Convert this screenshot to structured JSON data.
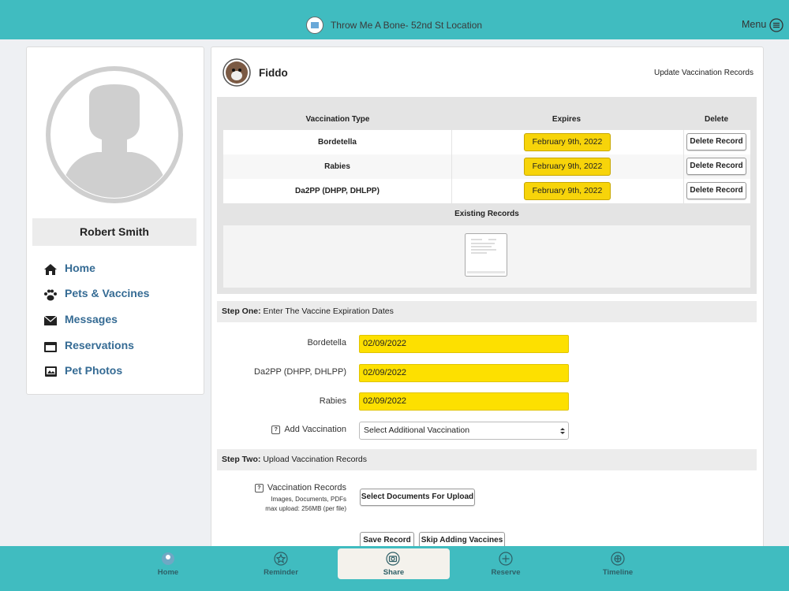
{
  "header": {
    "title": "Throw Me A Bone- 52nd St Location",
    "menu": "Menu"
  },
  "sidebar": {
    "name": "Robert Smith",
    "nav": [
      "Home",
      "Pets & Vaccines",
      "Messages",
      "Reservations",
      "Pet Photos"
    ]
  },
  "pet": {
    "name": "Fiddo",
    "action": "Update Vaccination Records"
  },
  "table": {
    "headers": [
      "Vaccination Type",
      "Expires",
      "Delete"
    ],
    "rows": [
      [
        "Bordetella",
        "February 9th, 2022",
        "Delete Record"
      ],
      [
        "Rabies",
        "February 9th, 2022",
        "Delete Record"
      ],
      [
        "Da2PP (DHPP, DHLPP)",
        "February 9th, 2022",
        "Delete Record"
      ]
    ]
  },
  "existing_records": "Existing Records",
  "step_one": {
    "label": "Step One:",
    "text": "Enter The Vaccine Expiration Dates",
    "fields": [
      {
        "label": "Bordetella",
        "value": "02/09/2022"
      },
      {
        "label": "Da2PP (DHPP, DHLPP)",
        "value": "02/09/2022"
      },
      {
        "label": "Rabies",
        "value": "02/09/2022"
      }
    ],
    "help_icon": "?",
    "add_label": "Add Vaccination",
    "select": "Select Additional Vaccination"
  },
  "step_two": {
    "label": "Step Two:",
    "text": "Upload Vaccination Records",
    "help_icon": "?",
    "field_label": "Vaccination Records",
    "hint_types": "Images, Documents, PDFs",
    "hint_size": "max upload: 256MB (per file)",
    "button": "Select Documents For Upload"
  },
  "buttons": [
    "Save Record",
    "Skip Adding Vaccines"
  ],
  "tabs": [
    "Home",
    "Reminder",
    "Share",
    "Reserve",
    "Timeline"
  ]
}
